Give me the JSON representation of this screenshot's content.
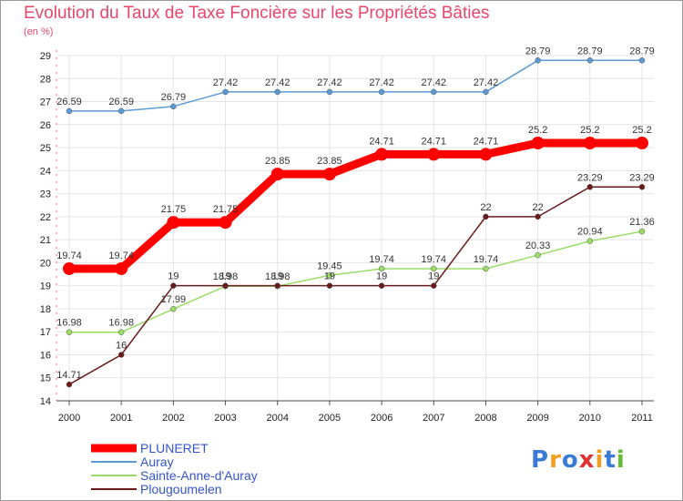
{
  "chart_data": {
    "type": "line",
    "title": "Evolution du Taux de Taxe Foncière sur les Propriétés Bâties",
    "ylabel": "(en %)",
    "xlabel": "",
    "x": [
      "2000",
      "2001",
      "2002",
      "2003",
      "2004",
      "2005",
      "2006",
      "2007",
      "2008",
      "2009",
      "2010",
      "2011"
    ],
    "ylim": [
      14,
      29
    ],
    "yticks": [
      14,
      15,
      16,
      17,
      18,
      19,
      20,
      21,
      22,
      23,
      24,
      25,
      26,
      27,
      28,
      29
    ],
    "grid": true,
    "legend_position": "bottom-left",
    "series": [
      {
        "name": "PLUNERET",
        "color": "#ff0000",
        "values": [
          19.74,
          19.74,
          21.75,
          21.75,
          23.85,
          23.85,
          24.71,
          24.71,
          24.71,
          25.2,
          25.2,
          25.2
        ],
        "labels": [
          "19.74",
          "19.74",
          "21.75",
          "21.75",
          "23.85",
          "23.85",
          "24.71",
          "24.71",
          "24.71",
          "25.2",
          "25.2",
          "25.2"
        ]
      },
      {
        "name": "Auray",
        "color": "#5b9bd5",
        "values": [
          26.59,
          26.59,
          26.79,
          27.42,
          27.42,
          27.42,
          27.42,
          27.42,
          27.42,
          28.79,
          28.79,
          28.79
        ],
        "labels": [
          "26.59",
          "26.59",
          "26.79",
          "27.42",
          "27.42",
          "27.42",
          "27.42",
          "27.42",
          "27.42",
          "28.79",
          "28.79",
          "28.79"
        ]
      },
      {
        "name": "Sainte-Anne-d'Auray",
        "color": "#99dd66",
        "values": [
          16.98,
          16.98,
          17.99,
          18.98,
          18.98,
          19.45,
          19.74,
          19.74,
          19.74,
          20.33,
          20.94,
          21.36
        ],
        "labels": [
          "16.98",
          "16.98",
          "17.99",
          "18.98",
          "18.98",
          "19.45",
          "19.74",
          "19.74",
          "19.74",
          "20.33",
          "20.94",
          "21.36"
        ]
      },
      {
        "name": "Plougoumelen",
        "color": "#6b1a1a",
        "values": [
          14.71,
          16,
          19,
          19,
          19,
          19,
          19,
          19,
          22,
          22,
          23.29,
          23.29
        ],
        "labels": [
          "14.71",
          "16",
          "19",
          "19",
          "19",
          "19",
          "19",
          "19",
          "22",
          "22",
          "23.29",
          "23.29"
        ]
      }
    ]
  },
  "logo_text": "Proxiti"
}
